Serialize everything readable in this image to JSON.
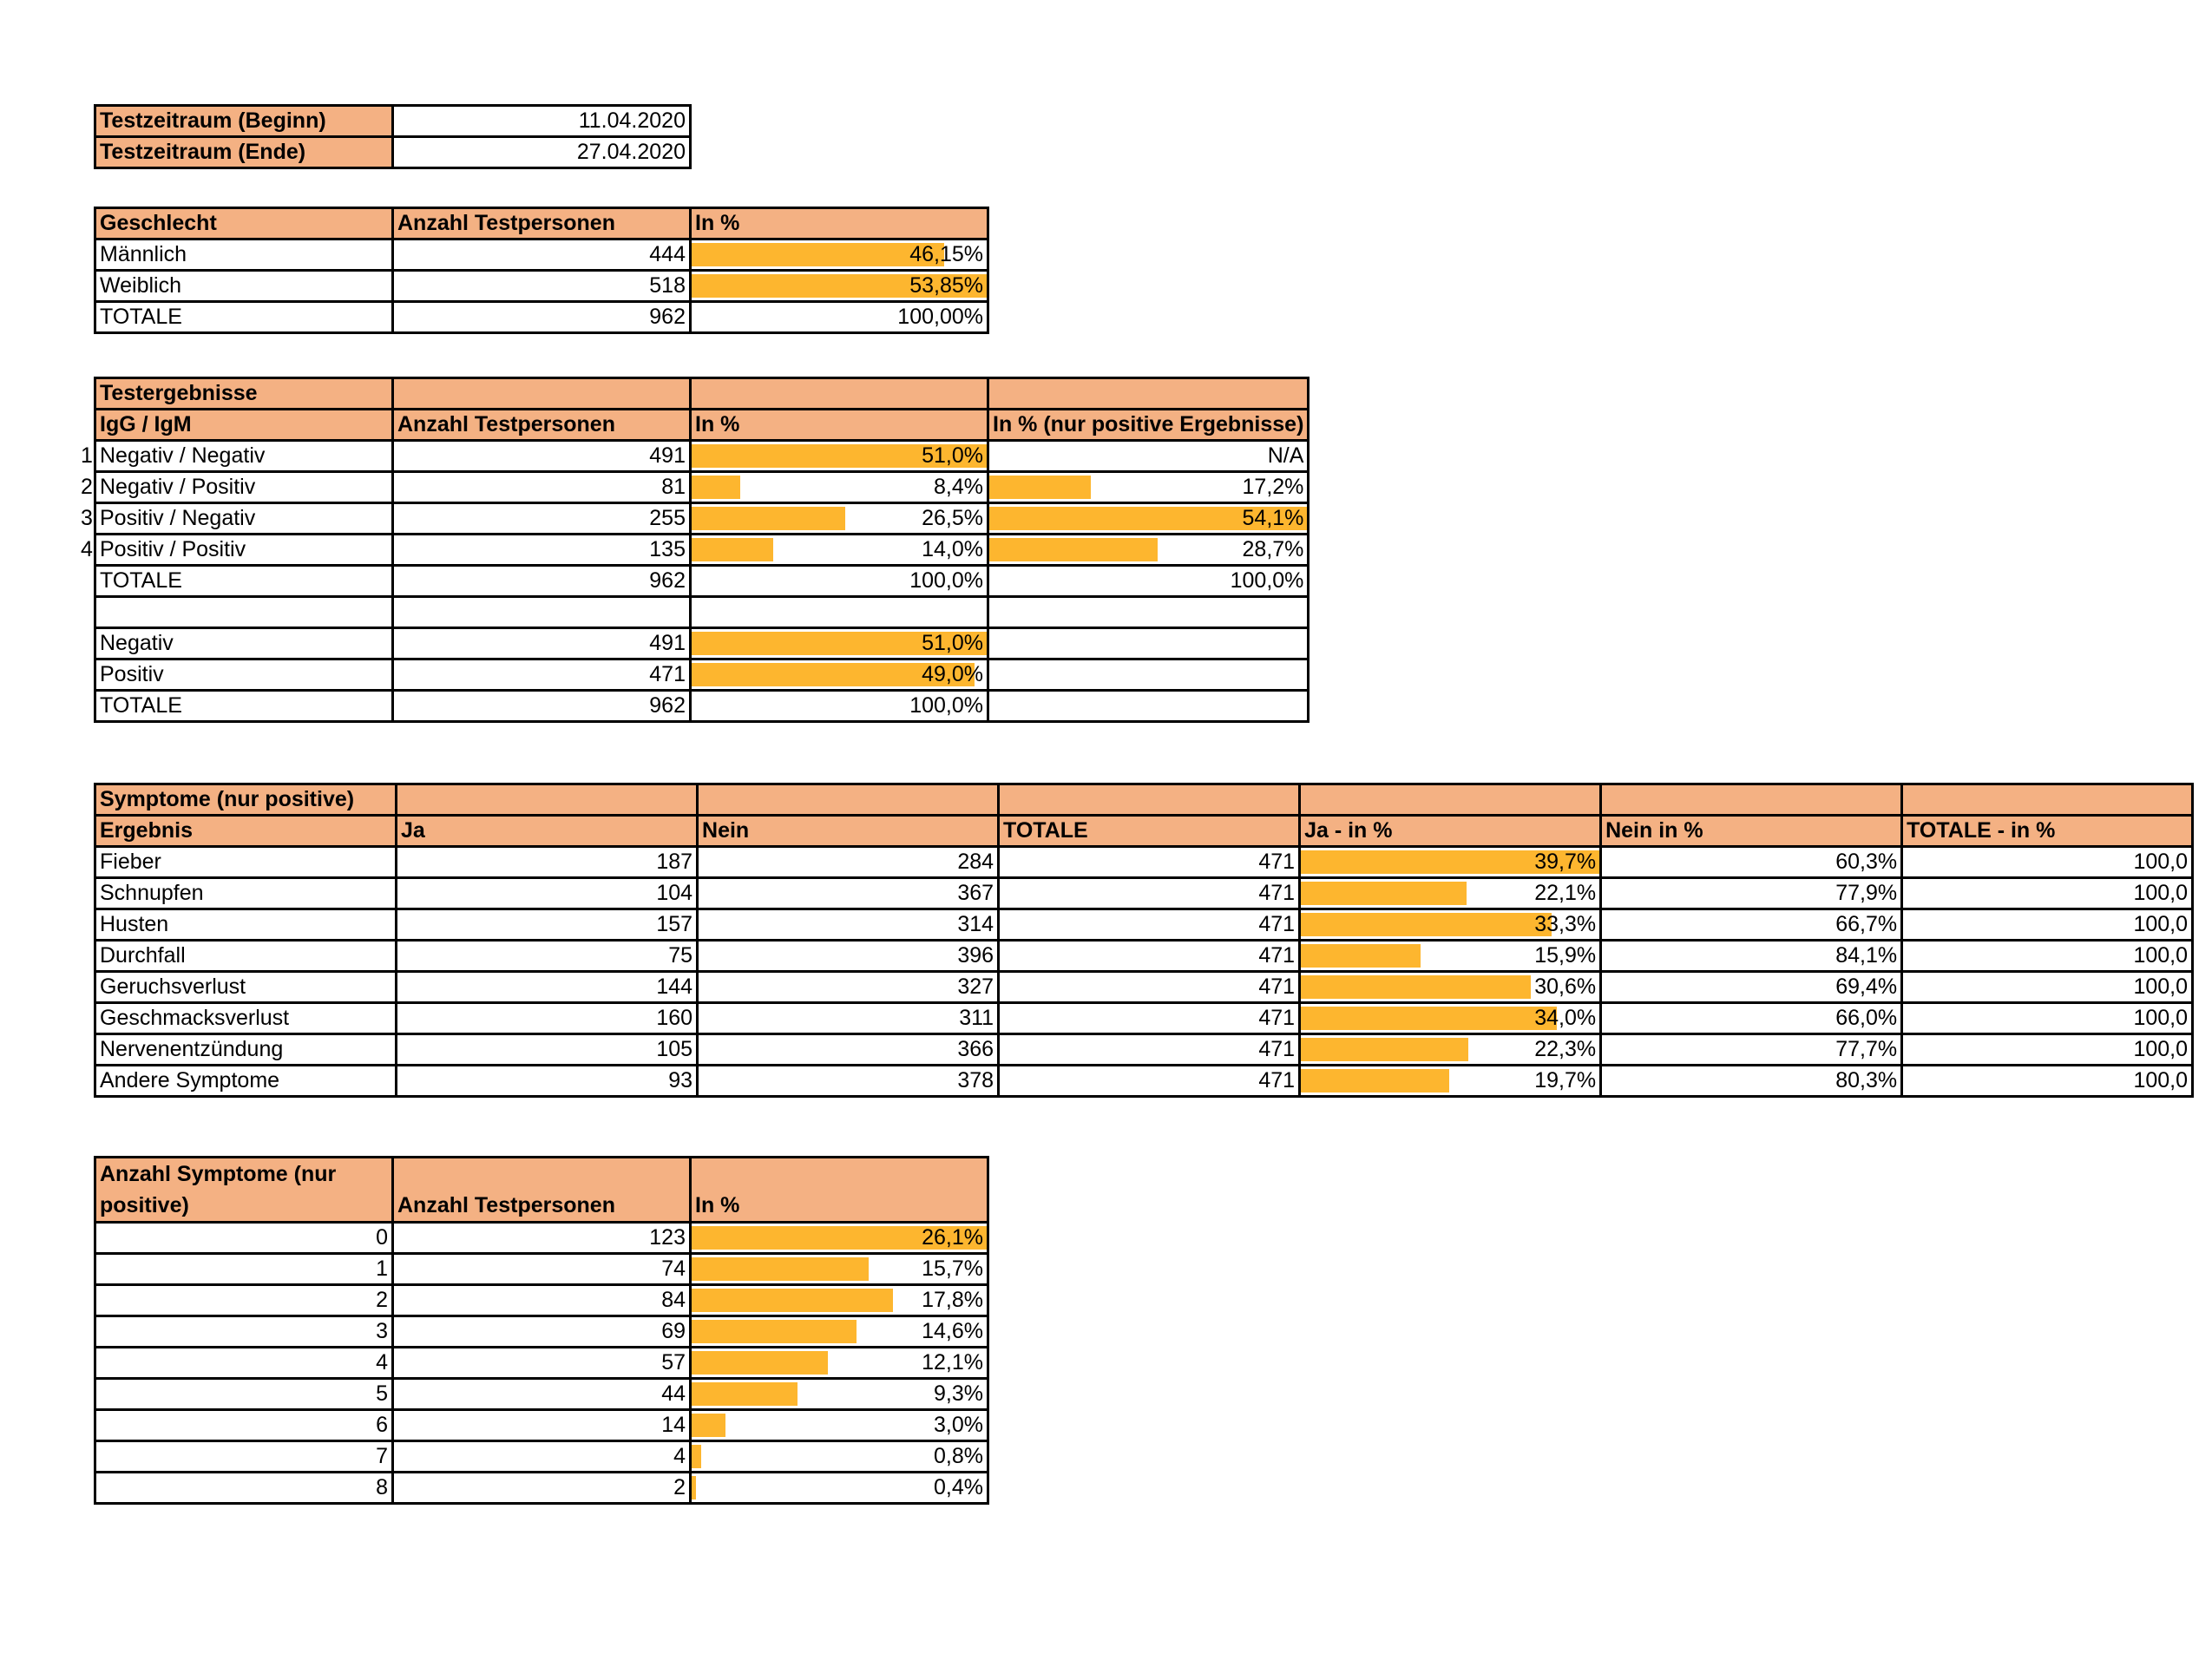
{
  "test_period": {
    "begin_label": "Testzeitraum (Beginn)",
    "begin_value": "11.04.2020",
    "end_label": "Testzeitraum (Ende)",
    "end_value": "27.04.2020"
  },
  "gender": {
    "headers": [
      "Geschlecht",
      "Anzahl Testpersonen",
      "In %"
    ],
    "rows": [
      {
        "label": "Männlich",
        "count": "444",
        "pct": "46,15%",
        "frac": 0.8571
      },
      {
        "label": "Weiblich",
        "count": "518",
        "pct": "53,85%",
        "frac": 1.0
      },
      {
        "label": "TOTALE",
        "count": "962",
        "pct": "100,00%",
        "frac": 0
      }
    ]
  },
  "results": {
    "title": "Testergebnisse",
    "headers": [
      "IgG / IgM",
      "Anzahl Testpersonen",
      "In %",
      "In % (nur positive Ergebnisse)"
    ],
    "rows": [
      {
        "idx": "1",
        "label": "Negativ / Negativ",
        "count": "491",
        "pct": "51,0%",
        "frac": 1.0,
        "pos_pct": "N/A",
        "pos_frac": 0
      },
      {
        "idx": "2",
        "label": "Negativ / Positiv",
        "count": "81",
        "pct": "8,4%",
        "frac": 0.165,
        "pos_pct": "17,2%",
        "pos_frac": 0.318
      },
      {
        "idx": "3",
        "label": "Positiv / Negativ",
        "count": "255",
        "pct": "26,5%",
        "frac": 0.52,
        "pos_pct": "54,1%",
        "pos_frac": 1.0
      },
      {
        "idx": "4",
        "label": "Positiv / Positiv",
        "count": "135",
        "pct": "14,0%",
        "frac": 0.275,
        "pos_pct": "28,7%",
        "pos_frac": 0.53
      },
      {
        "idx": "",
        "label": "TOTALE",
        "count": "962",
        "pct": "100,0%",
        "frac": 0,
        "pos_pct": "100,0%",
        "pos_frac": 0
      }
    ],
    "summary": [
      {
        "label": "Negativ",
        "count": "491",
        "pct": "51,0%",
        "frac": 1.0
      },
      {
        "label": "Positiv",
        "count": "471",
        "pct": "49,0%",
        "frac": 0.96
      },
      {
        "label": "TOTALE",
        "count": "962",
        "pct": "100,0%",
        "frac": 0
      }
    ]
  },
  "symptoms": {
    "title": "Symptome (nur positive)",
    "headers": [
      "Ergebnis",
      "Ja",
      "Nein",
      "TOTALE",
      "Ja - in %",
      "Nein in %",
      "TOTALE - in %"
    ],
    "rows": [
      {
        "label": "Fieber",
        "ja": "187",
        "nein": "284",
        "total": "471",
        "ja_pct": "39,7%",
        "frac": 1.0,
        "nein_pct": "60,3%",
        "total_pct": "100,0"
      },
      {
        "label": "Schnupfen",
        "ja": "104",
        "nein": "367",
        "total": "471",
        "ja_pct": "22,1%",
        "frac": 0.556,
        "nein_pct": "77,9%",
        "total_pct": "100,0"
      },
      {
        "label": "Husten",
        "ja": "157",
        "nein": "314",
        "total": "471",
        "ja_pct": "33,3%",
        "frac": 0.84,
        "nein_pct": "66,7%",
        "total_pct": "100,0"
      },
      {
        "label": "Durchfall",
        "ja": "75",
        "nein": "396",
        "total": "471",
        "ja_pct": "15,9%",
        "frac": 0.4,
        "nein_pct": "84,1%",
        "total_pct": "100,0"
      },
      {
        "label": "Geruchsverlust",
        "ja": "144",
        "nein": "327",
        "total": "471",
        "ja_pct": "30,6%",
        "frac": 0.77,
        "nein_pct": "69,4%",
        "total_pct": "100,0"
      },
      {
        "label": "Geschmacksverlust",
        "ja": "160",
        "nein": "311",
        "total": "471",
        "ja_pct": "34,0%",
        "frac": 0.856,
        "nein_pct": "66,0%",
        "total_pct": "100,0"
      },
      {
        "label": "Nervenentzündung",
        "ja": "105",
        "nein": "366",
        "total": "471",
        "ja_pct": "22,3%",
        "frac": 0.56,
        "nein_pct": "77,7%",
        "total_pct": "100,0"
      },
      {
        "label": "Andere Symptome",
        "ja": "93",
        "nein": "378",
        "total": "471",
        "ja_pct": "19,7%",
        "frac": 0.497,
        "nein_pct": "80,3%",
        "total_pct": "100,0"
      }
    ]
  },
  "symptom_count": {
    "headers": [
      "Anzahl Symptome (nur positive)",
      "Anzahl Testpersonen",
      "In %"
    ],
    "rows": [
      {
        "n": "0",
        "count": "123",
        "pct": "26,1%",
        "frac": 1.0
      },
      {
        "n": "1",
        "count": "74",
        "pct": "15,7%",
        "frac": 0.6
      },
      {
        "n": "2",
        "count": "84",
        "pct": "17,8%",
        "frac": 0.683
      },
      {
        "n": "3",
        "count": "69",
        "pct": "14,6%",
        "frac": 0.56
      },
      {
        "n": "4",
        "count": "57",
        "pct": "12,1%",
        "frac": 0.463
      },
      {
        "n": "5",
        "count": "44",
        "pct": "9,3%",
        "frac": 0.358
      },
      {
        "n": "6",
        "count": "14",
        "pct": "3,0%",
        "frac": 0.115
      },
      {
        "n": "7",
        "count": "4",
        "pct": "0,8%",
        "frac": 0.033
      },
      {
        "n": "8",
        "count": "2",
        "pct": "0,4%",
        "frac": 0.016
      }
    ]
  },
  "colors": {
    "header_fill": "#f4b183",
    "bar_fill": "#fdb62f"
  }
}
